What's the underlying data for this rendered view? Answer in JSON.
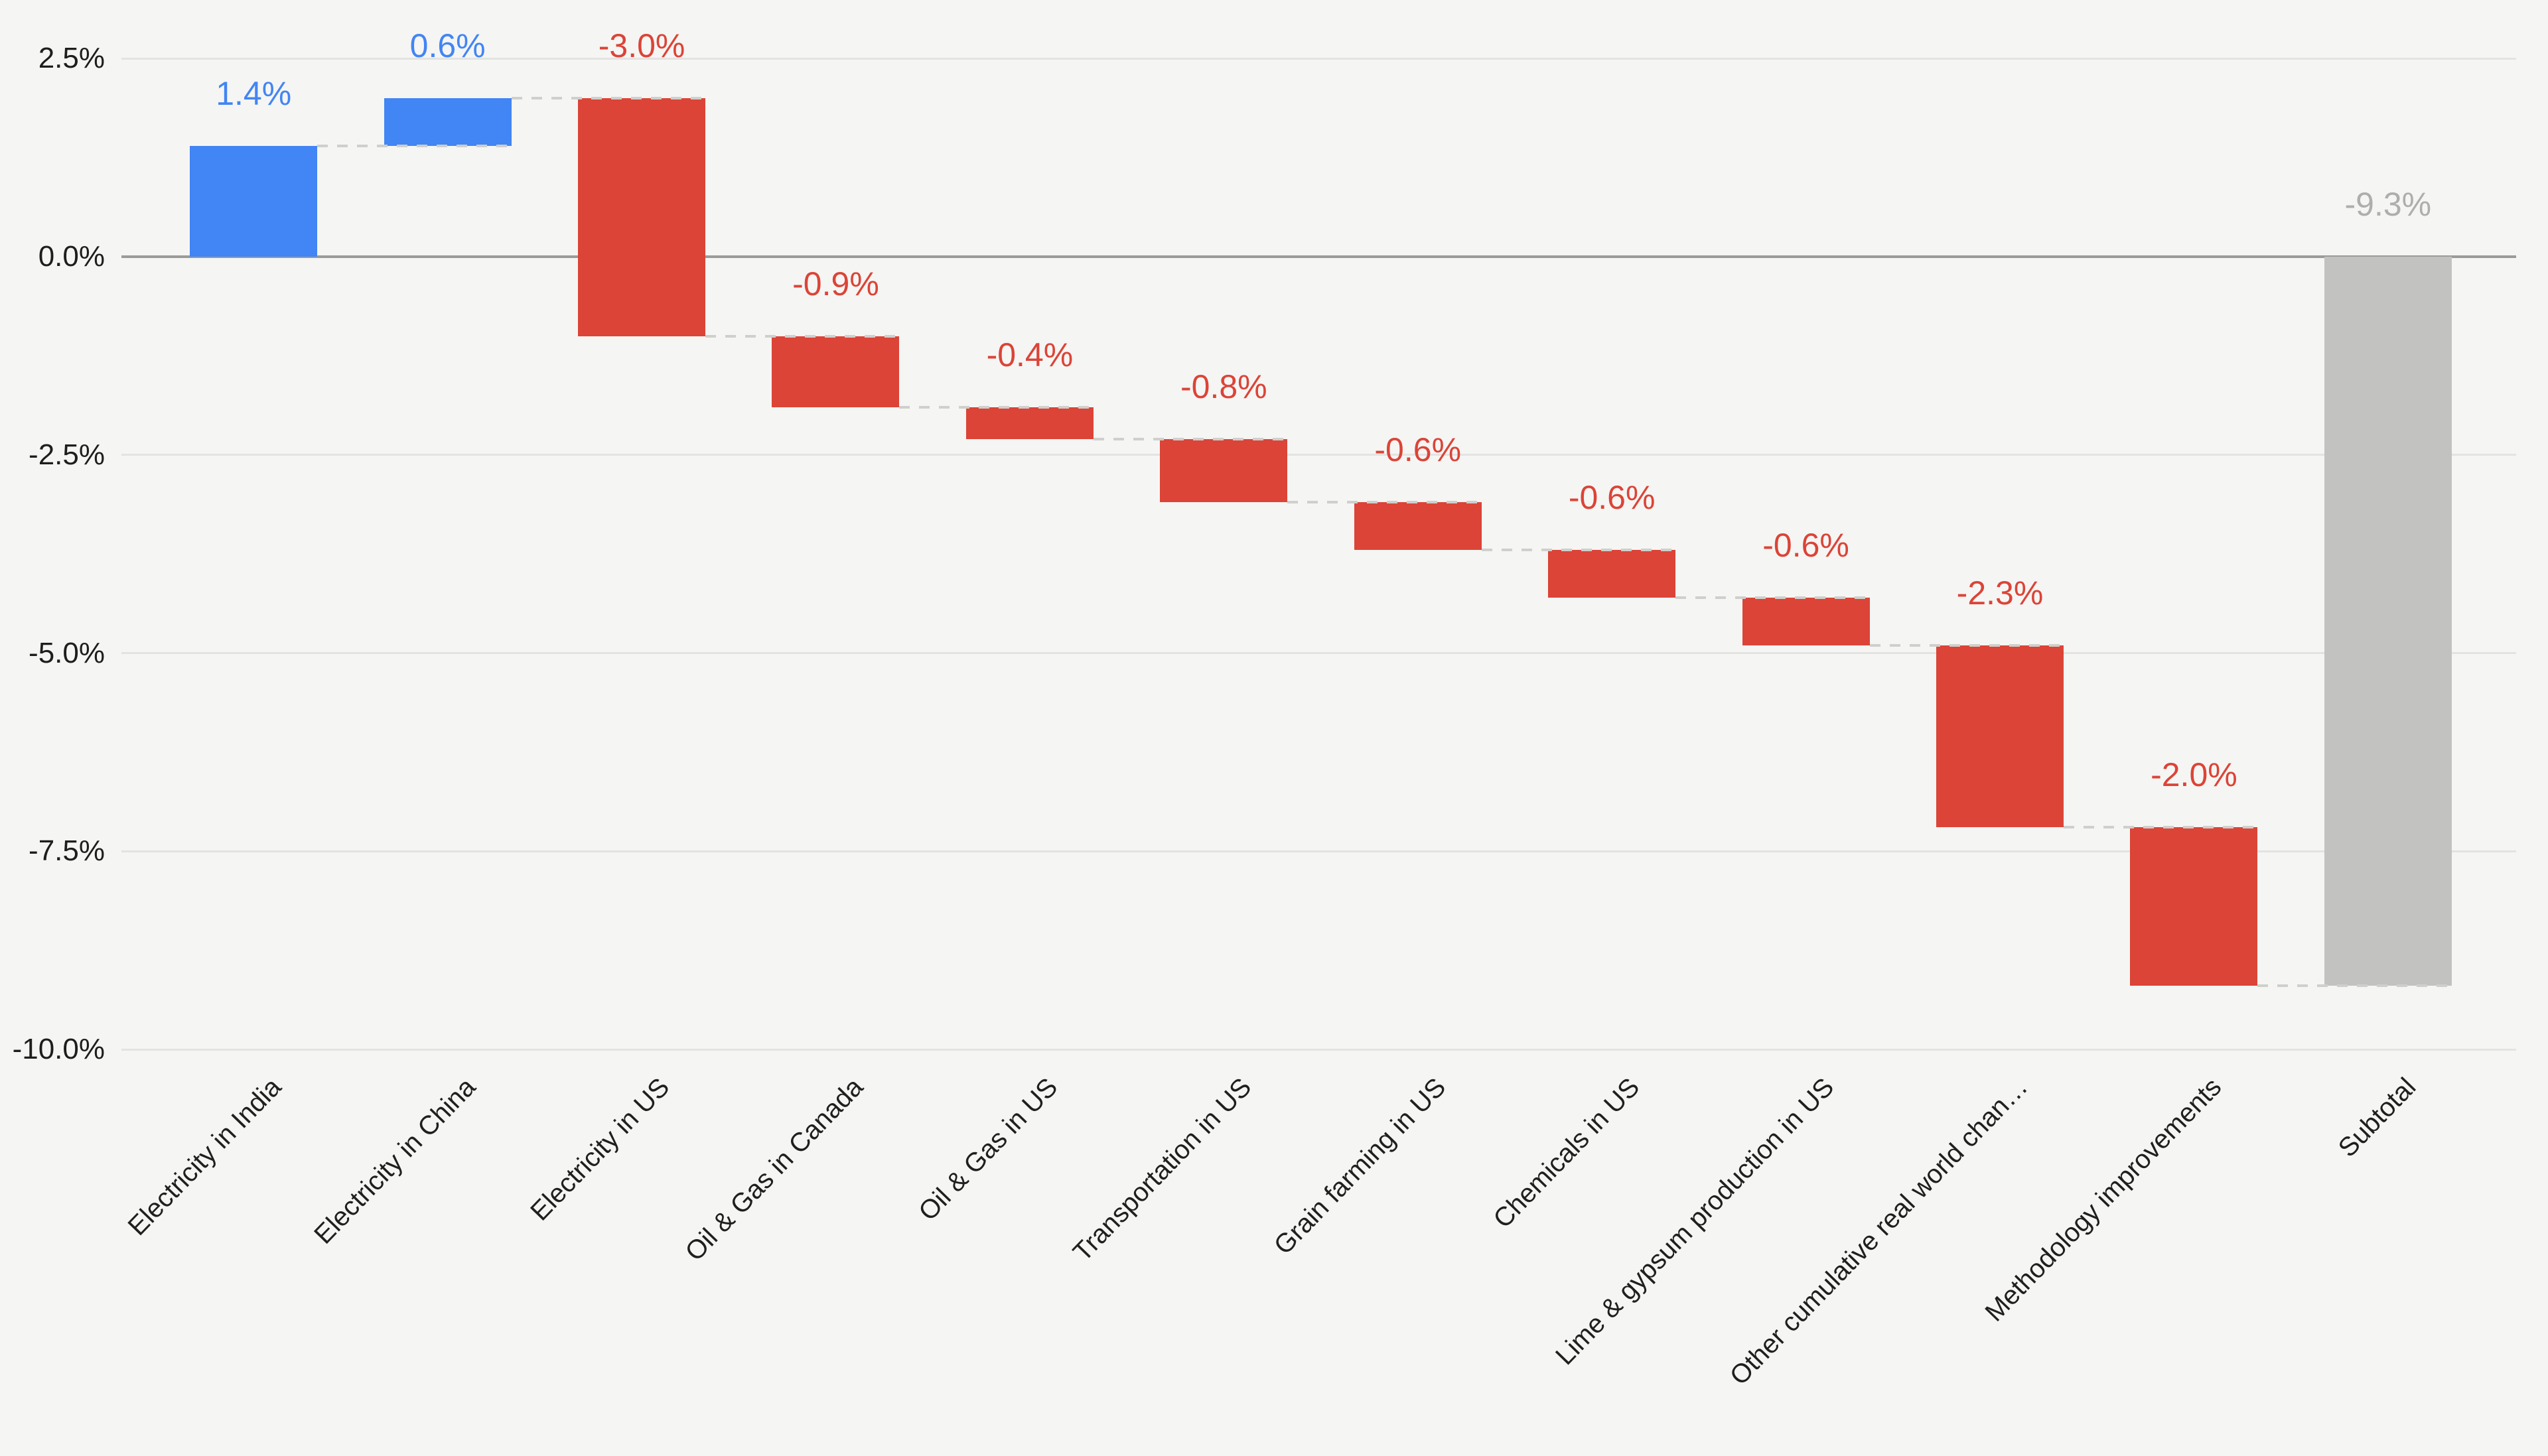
{
  "chart_data": {
    "type": "waterfall",
    "title": "",
    "legend": "none",
    "grid": true,
    "categories": [
      "Electricity in India",
      "Electricity in China",
      "Electricity in US",
      "Oil & Gas in Canada",
      "Oil & Gas in US",
      "Transportation in US",
      "Grain farming in US",
      "Chemicals in US",
      "Lime & gypsum production in US",
      "Other cumulative real world chan…",
      "Methodology improvements",
      "Subtotal"
    ],
    "bars": [
      {
        "label": "Electricity in India",
        "value": 1.4,
        "display": "1.4%",
        "kind": "increase"
      },
      {
        "label": "Electricity in China",
        "value": 0.6,
        "display": "0.6%",
        "kind": "increase"
      },
      {
        "label": "Electricity in US",
        "value": -3.0,
        "display": "-3.0%",
        "kind": "decrease"
      },
      {
        "label": "Oil & Gas in Canada",
        "value": -0.9,
        "display": "-0.9%",
        "kind": "decrease"
      },
      {
        "label": "Oil & Gas in US",
        "value": -0.4,
        "display": "-0.4%",
        "kind": "decrease"
      },
      {
        "label": "Transportation in US",
        "value": -0.8,
        "display": "-0.8%",
        "kind": "decrease"
      },
      {
        "label": "Grain farming in US",
        "value": -0.6,
        "display": "-0.6%",
        "kind": "decrease"
      },
      {
        "label": "Chemicals in US",
        "value": -0.6,
        "display": "-0.6%",
        "kind": "decrease"
      },
      {
        "label": "Lime & gypsum production in US",
        "value": -0.6,
        "display": "-0.6%",
        "kind": "decrease"
      },
      {
        "label": "Other cumulative real world chan…",
        "value": -2.3,
        "display": "-2.3%",
        "kind": "decrease"
      },
      {
        "label": "Methodology improvements",
        "value": -2.0,
        "display": "-2.0%",
        "kind": "decrease"
      },
      {
        "label": "Subtotal",
        "value": -9.3,
        "display": "-9.3%",
        "kind": "subtotal"
      }
    ],
    "y_axis": {
      "tick_labels": [
        "2.5%",
        "0.0%",
        "-2.5%",
        "-5.0%",
        "-7.5%",
        "-10.0%"
      ],
      "tick_values": [
        2.5,
        0.0,
        -2.5,
        -5.0,
        -7.5,
        -10.0
      ],
      "max": 2.5,
      "min": -10.0,
      "unit": "%"
    },
    "colors": {
      "increase": "#4285f4",
      "decrease": "#db4437",
      "subtotal": "#c2c2c0",
      "increase_label": "#4285f4",
      "decrease_label": "#db4437",
      "subtotal_label": "#aeaeac",
      "background": "#f5f5f3",
      "gridline": "#e3e3e1",
      "zero_line": "#9b9b99",
      "tick_text": "#1e1e1e",
      "category_text": "#1f1f1f",
      "connector": "#cfcfcc"
    }
  }
}
